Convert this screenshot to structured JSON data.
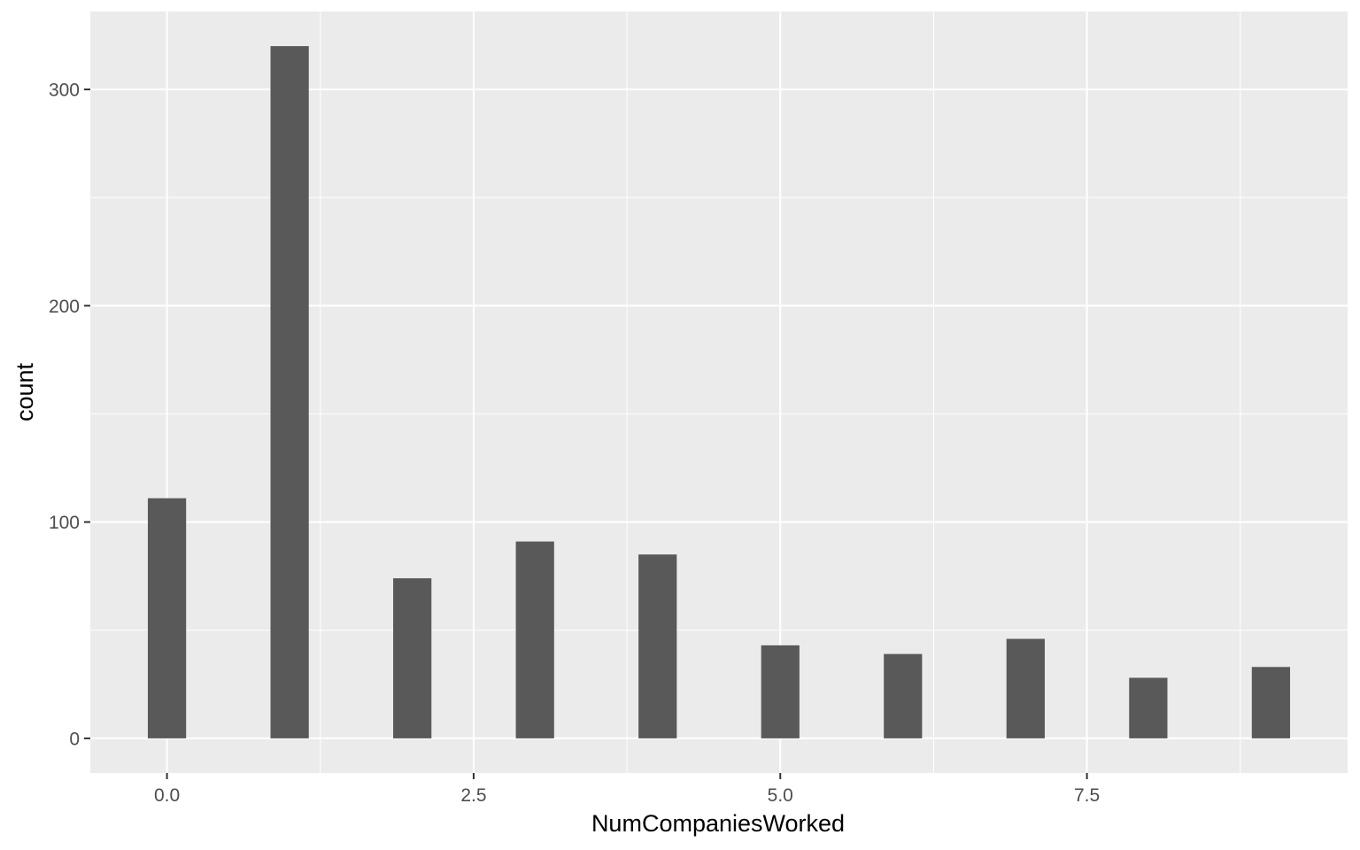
{
  "chart_data": {
    "type": "bar",
    "title": "",
    "xlabel": "NumCompaniesWorked",
    "ylabel": "count",
    "x": [
      0,
      1,
      2,
      3,
      4,
      5,
      6,
      7,
      8,
      9
    ],
    "values": [
      111,
      320,
      74,
      91,
      85,
      43,
      39,
      46,
      28,
      33
    ],
    "xlim": [
      -0.625,
      9.625
    ],
    "ylim": [
      -16,
      336
    ],
    "x_ticks": [
      0,
      2.5,
      5,
      7.5
    ],
    "x_tick_labels": [
      "0.0",
      "2.5",
      "5.0",
      "7.5"
    ],
    "y_ticks": [
      0,
      100,
      200,
      300
    ],
    "y_tick_labels": [
      "0",
      "100",
      "200",
      "300"
    ],
    "grid": true,
    "legend": "none",
    "colors": {
      "bar": "#595959",
      "panel": "#ebebeb",
      "grid": "#ffffff"
    }
  }
}
